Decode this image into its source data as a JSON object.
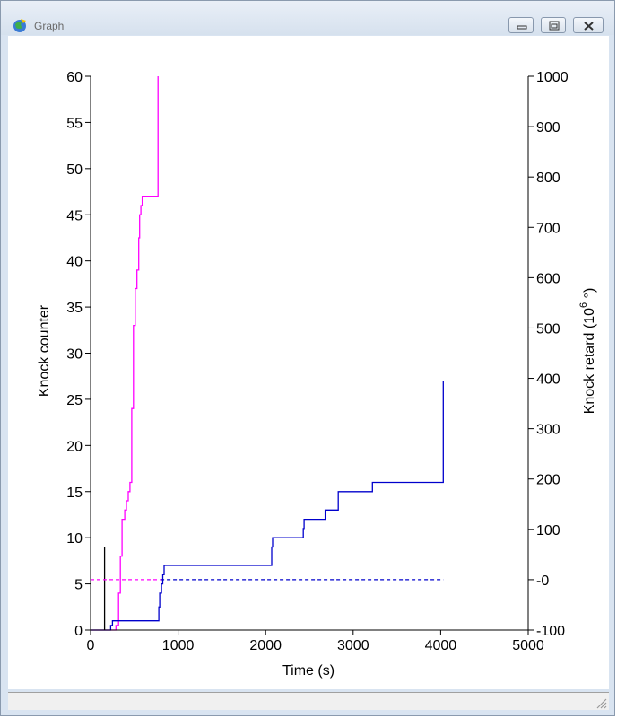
{
  "window": {
    "title": "Graph"
  },
  "chart_data": {
    "type": "line",
    "xlabel": "Time (s)",
    "ylabel_left": "Knock counter",
    "ylabel_right": "Knock retard (10",
    "ylabel_right_exp": "6",
    "ylabel_right_suffix": " °)",
    "xlim": [
      0,
      5000
    ],
    "ylim_left": [
      0,
      60
    ],
    "ylim_right": [
      -100,
      1000
    ],
    "x_ticks": [
      "0",
      "1000",
      "2000",
      "3000",
      "4000",
      "5000"
    ],
    "y_left_ticks": [
      "0",
      "5",
      "10",
      "15",
      "20",
      "25",
      "30",
      "35",
      "40",
      "45",
      "50",
      "55",
      "60"
    ],
    "y_right_ticks": [
      "-100",
      "-0",
      "100",
      "200",
      "300",
      "400",
      "500",
      "600",
      "700",
      "800",
      "900",
      "1000"
    ],
    "colors": {
      "magenta": "#ff00ff",
      "blue": "#0000cc",
      "black": "#000000"
    },
    "series": [
      {
        "axis": "left",
        "color": "#ff00ff",
        "style": "step",
        "points": [
          [
            0,
            0
          ],
          [
            290,
            0
          ],
          [
            290,
            0.5
          ],
          [
            320,
            0.5
          ],
          [
            320,
            4
          ],
          [
            340,
            4
          ],
          [
            340,
            8
          ],
          [
            360,
            8
          ],
          [
            360,
            12
          ],
          [
            390,
            12
          ],
          [
            390,
            13
          ],
          [
            410,
            13
          ],
          [
            410,
            14
          ],
          [
            430,
            14
          ],
          [
            430,
            15
          ],
          [
            450,
            15
          ],
          [
            450,
            16
          ],
          [
            470,
            16
          ],
          [
            470,
            24
          ],
          [
            490,
            24
          ],
          [
            490,
            33
          ],
          [
            510,
            33
          ],
          [
            510,
            37
          ],
          [
            530,
            37
          ],
          [
            530,
            39
          ],
          [
            550,
            39
          ],
          [
            550,
            42.5
          ],
          [
            560,
            42.5
          ],
          [
            560,
            45
          ],
          [
            575,
            45
          ],
          [
            575,
            46
          ],
          [
            590,
            46
          ],
          [
            590,
            47
          ],
          [
            770,
            47
          ],
          [
            770,
            60
          ]
        ]
      },
      {
        "axis": "left",
        "color": "#0000cc",
        "style": "step",
        "points": [
          [
            0,
            0
          ],
          [
            230,
            0
          ],
          [
            230,
            0.5
          ],
          [
            250,
            0.5
          ],
          [
            250,
            1
          ],
          [
            780,
            1
          ],
          [
            780,
            2.5
          ],
          [
            790,
            2.5
          ],
          [
            790,
            4
          ],
          [
            810,
            4
          ],
          [
            810,
            5
          ],
          [
            825,
            5
          ],
          [
            825,
            6
          ],
          [
            840,
            6
          ],
          [
            840,
            7
          ],
          [
            2070,
            7
          ],
          [
            2070,
            9
          ],
          [
            2080,
            9
          ],
          [
            2080,
            10
          ],
          [
            2430,
            10
          ],
          [
            2430,
            11
          ],
          [
            2440,
            11
          ],
          [
            2440,
            12
          ],
          [
            2680,
            12
          ],
          [
            2680,
            13
          ],
          [
            2830,
            13
          ],
          [
            2830,
            15
          ],
          [
            3220,
            15
          ],
          [
            3220,
            16
          ],
          [
            4030,
            16
          ],
          [
            4030,
            27
          ]
        ]
      },
      {
        "axis": "left",
        "color": "#000000",
        "style": "line",
        "points": [
          [
            160,
            0
          ],
          [
            160,
            9
          ]
        ]
      },
      {
        "axis": "right",
        "color": "#ff00ff",
        "style": "dashed",
        "points": [
          [
            0,
            0
          ],
          [
            800,
            0
          ]
        ]
      },
      {
        "axis": "right",
        "color": "#0000cc",
        "style": "dashed",
        "points": [
          [
            800,
            0
          ],
          [
            4030,
            0
          ]
        ]
      }
    ]
  }
}
